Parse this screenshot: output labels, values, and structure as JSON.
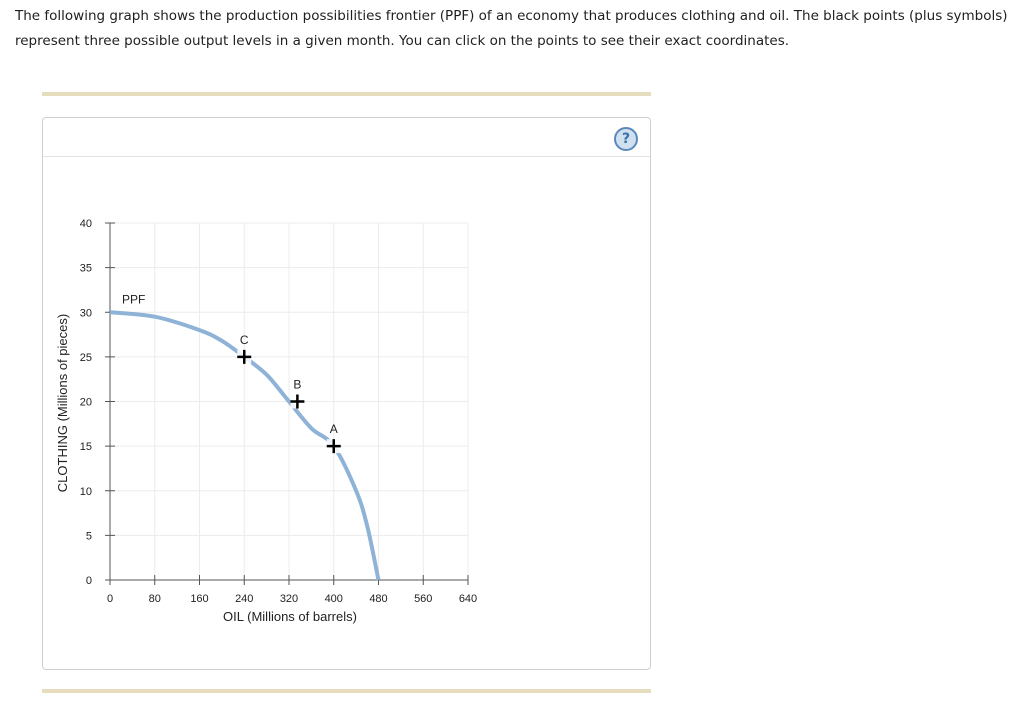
{
  "question": {
    "text": "The following graph shows the production possibilities frontier (PPF) of an economy that produces clothing and oil. The black points (plus symbols) represent three possible output levels in a given month. You can click on the points to see their exact coordinates."
  },
  "help": {
    "label": "?",
    "icon": "question-circle-icon"
  },
  "colors": {
    "ppf_curve": "#8eb3d6",
    "grid": "#ececec",
    "point": "#000000",
    "rule": "#e6dcbe"
  },
  "chart_data": {
    "type": "line",
    "title": "",
    "xlabel": "OIL (Millions of barrels)",
    "ylabel": "CLOTHING (Millions of pieces)",
    "xlim": [
      0,
      640
    ],
    "ylim": [
      0,
      40
    ],
    "xticks": [
      0,
      80,
      160,
      240,
      320,
      400,
      480,
      560,
      640
    ],
    "yticks": [
      0,
      5,
      10,
      15,
      20,
      25,
      30,
      35,
      40
    ],
    "grid": true,
    "series": [
      {
        "name": "PPF",
        "x": [
          0,
          80,
          160,
          200,
          240,
          280,
          320,
          360,
          400,
          440,
          460,
          480
        ],
        "y": [
          30,
          29.5,
          28,
          26.8,
          25,
          23,
          20,
          17,
          15,
          10,
          6,
          0
        ]
      }
    ],
    "points": [
      {
        "label": "C",
        "x": 240,
        "y": 25
      },
      {
        "label": "B",
        "x": 335,
        "y": 20
      },
      {
        "label": "A",
        "x": 400,
        "y": 15
      }
    ]
  }
}
